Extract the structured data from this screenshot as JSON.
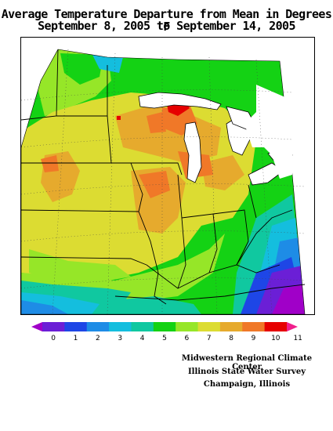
{
  "title": {
    "line1": "Average Temperature Departure from Mean in Degrees F",
    "line2": "September 8, 2005 to September 14, 2005"
  },
  "legend": {
    "ticks": [
      "0",
      "1",
      "2",
      "3",
      "4",
      "5",
      "6",
      "7",
      "8",
      "9",
      "10",
      "11"
    ],
    "colors": [
      "#a000c8",
      "#6b1fd6",
      "#1e46e6",
      "#1e8ce6",
      "#14bede",
      "#10c8a0",
      "#14d214",
      "#96e628",
      "#dcdc32",
      "#e6aa2d",
      "#f07828",
      "#e60000",
      "#f01e8c"
    ]
  },
  "credits": {
    "line1": "Midwestern Regional Climate Center",
    "line2": "Illinois State Water Survey",
    "line3": "Champaign, Illinois"
  }
}
